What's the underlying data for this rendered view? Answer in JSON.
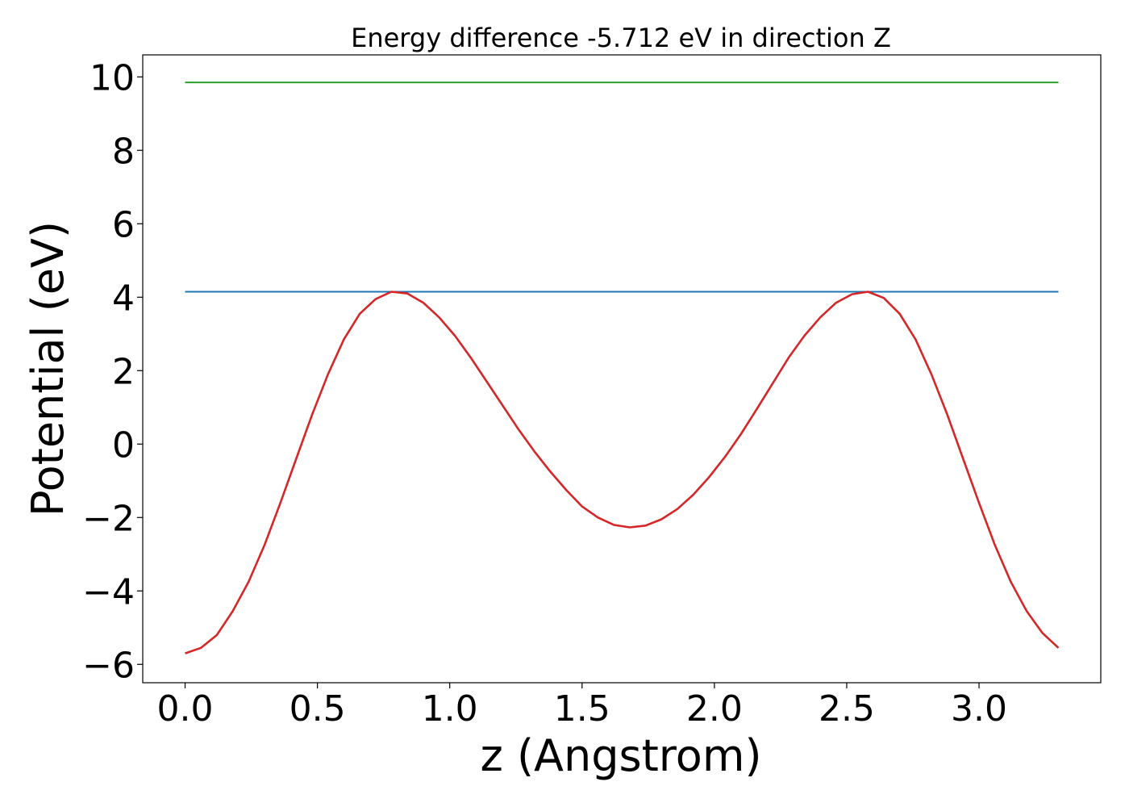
{
  "chart_data": {
    "type": "line",
    "title": "Energy difference -5.712 eV in direction Z",
    "xlabel": "z (Angstrom)",
    "ylabel": "Potential (eV)",
    "xlim": [
      -0.16,
      3.46
    ],
    "ylim": [
      -6.5,
      10.6
    ],
    "xticks": [
      0.0,
      0.5,
      1.0,
      1.5,
      2.0,
      2.5,
      3.0
    ],
    "xtick_labels": [
      "0.0",
      "0.5",
      "1.0",
      "1.5",
      "2.0",
      "2.5",
      "3.0"
    ],
    "yticks": [
      -6,
      -4,
      -2,
      0,
      2,
      4,
      6,
      8,
      10
    ],
    "ytick_labels": [
      "−6",
      "−4",
      "−2",
      "0",
      "2",
      "4",
      "6",
      "8",
      "10"
    ],
    "grid": false,
    "series": [
      {
        "color": "#2ca02c",
        "x": [
          0.0,
          3.3
        ],
        "y": [
          9.85,
          9.85
        ]
      },
      {
        "color": "#1f77b4",
        "x": [
          0.0,
          3.3
        ],
        "y": [
          4.15,
          4.15
        ]
      },
      {
        "color": "#d62728",
        "x": [
          0.0,
          0.06,
          0.12,
          0.18,
          0.24,
          0.3,
          0.36,
          0.42,
          0.48,
          0.54,
          0.6,
          0.66,
          0.72,
          0.78,
          0.84,
          0.9,
          0.96,
          1.02,
          1.08,
          1.14,
          1.2,
          1.26,
          1.32,
          1.38,
          1.44,
          1.5,
          1.56,
          1.62,
          1.68,
          1.74,
          1.8,
          1.86,
          1.92,
          1.98,
          2.04,
          2.1,
          2.16,
          2.22,
          2.28,
          2.34,
          2.4,
          2.46,
          2.52,
          2.58,
          2.64,
          2.7,
          2.76,
          2.82,
          2.88,
          2.94,
          3.0,
          3.06,
          3.12,
          3.18,
          3.24,
          3.3
        ],
        "y": [
          -5.7,
          -5.55,
          -5.2,
          -4.55,
          -3.75,
          -2.75,
          -1.6,
          -0.4,
          0.8,
          1.9,
          2.85,
          3.55,
          3.95,
          4.15,
          4.1,
          3.85,
          3.45,
          2.95,
          2.35,
          1.7,
          1.05,
          0.4,
          -0.2,
          -0.75,
          -1.25,
          -1.7,
          -2.0,
          -2.2,
          -2.27,
          -2.22,
          -2.05,
          -1.77,
          -1.38,
          -0.9,
          -0.35,
          0.27,
          0.95,
          1.65,
          2.35,
          2.95,
          3.45,
          3.85,
          4.08,
          4.15,
          3.98,
          3.55,
          2.85,
          1.9,
          0.8,
          -0.4,
          -1.6,
          -2.75,
          -3.75,
          -4.55,
          -5.15,
          -5.55
        ]
      }
    ]
  }
}
